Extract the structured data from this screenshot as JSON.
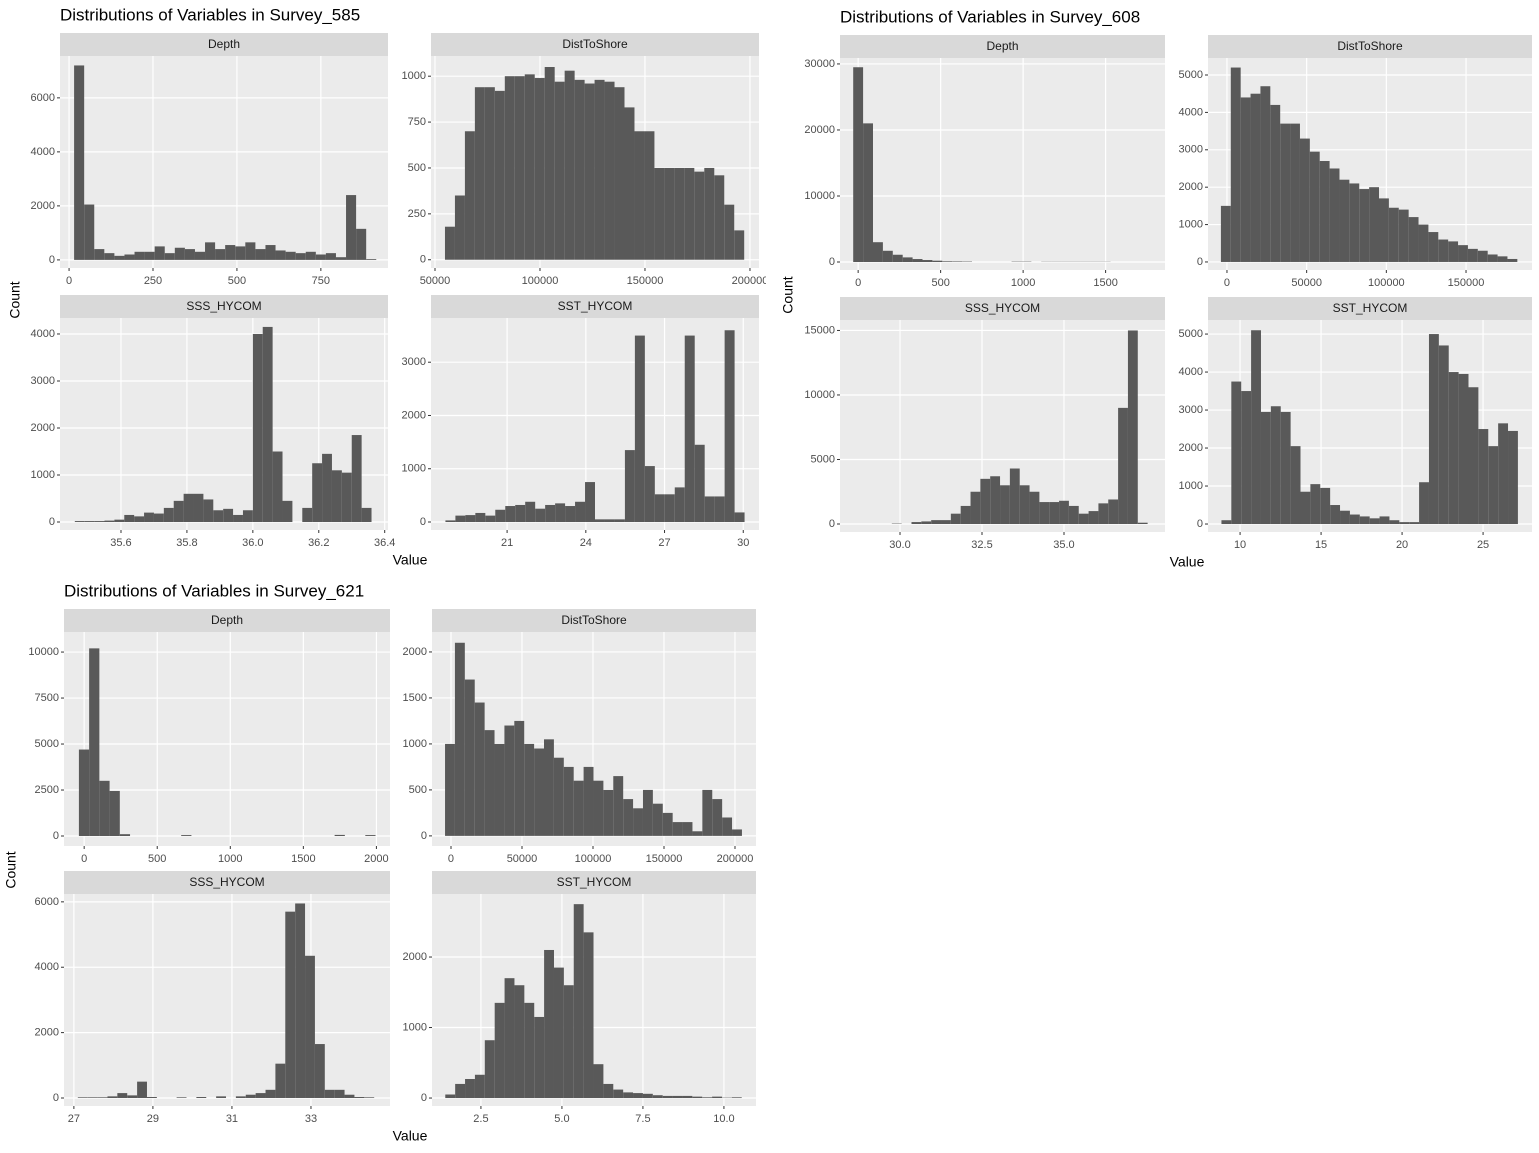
{
  "chart_data": [
    {
      "type": "histogram",
      "title": "Distributions of Variables in Survey_585",
      "xlabel": "Value",
      "ylabel": "Count",
      "color": "#595959",
      "grid": true,
      "facets": [
        {
          "name": "Depth",
          "bins": [
            15,
            45,
            75,
            105,
            135,
            165,
            195,
            225,
            255,
            285,
            315,
            345,
            375,
            405,
            435,
            465,
            495,
            525,
            555,
            585,
            615,
            645,
            675,
            705,
            735,
            765,
            795,
            825,
            855,
            885,
            915
          ],
          "counts": [
            7200,
            2050,
            400,
            250,
            150,
            200,
            300,
            300,
            500,
            250,
            450,
            400,
            300,
            650,
            400,
            550,
            500,
            650,
            400,
            550,
            350,
            300,
            250,
            300,
            200,
            250,
            100,
            2400,
            1150,
            30
          ],
          "xlim": [
            -27,
            950
          ],
          "xticks": [
            0,
            250,
            500,
            750
          ],
          "ylim": [
            -300,
            7550
          ],
          "yticks": [
            0,
            2000,
            4000,
            6000
          ]
        },
        {
          "name": "DistToShore",
          "bins": [
            54750,
            59500,
            64250,
            69000,
            73750,
            78500,
            83250,
            88000,
            92750,
            97500,
            102250,
            107000,
            111750,
            116500,
            121250,
            126000,
            130750,
            135500,
            140250,
            145000,
            149750,
            154500,
            159250,
            164000,
            168750,
            173500,
            178250,
            183000,
            187750,
            192500,
            197250
          ],
          "counts": [
            180,
            350,
            700,
            940,
            940,
            920,
            1000,
            1000,
            1010,
            990,
            1050,
            970,
            1030,
            980,
            960,
            980,
            970,
            940,
            830,
            700,
            700,
            500,
            500,
            500,
            500,
            480,
            500,
            460,
            300,
            160
          ],
          "xlim": [
            48100,
            204300
          ],
          "xticks": [
            50000,
            100000,
            150000,
            200000
          ],
          "ylim": [
            -45,
            1110
          ],
          "yticks": [
            0,
            250,
            500,
            750,
            1000
          ]
        },
        {
          "name": "SSS_HYCOM",
          "bins": [
            35.46,
            35.49,
            35.52,
            35.55,
            35.58,
            35.61,
            35.64,
            35.67,
            35.7,
            35.73,
            35.76,
            35.79,
            35.82,
            35.85,
            35.88,
            35.91,
            35.94,
            35.97,
            36,
            36.03,
            36.06,
            36.09,
            36.12,
            36.15,
            36.18,
            36.21,
            36.24,
            36.27,
            36.3,
            36.33,
            36.36
          ],
          "counts": [
            20,
            20,
            20,
            30,
            50,
            150,
            120,
            200,
            180,
            300,
            450,
            600,
            600,
            480,
            250,
            280,
            150,
            250,
            4000,
            4150,
            1500,
            450,
            0,
            300,
            1250,
            1450,
            1100,
            1050,
            1850,
            300
          ],
          "xlim": [
            35.415,
            36.41
          ],
          "xticks": [
            35.6,
            35.8,
            {
              "value": 36,
              "label": "36.0"
            },
            36.2,
            36.4
          ],
          "ylim": [
            -170,
            4340
          ],
          "yticks": [
            0,
            1000,
            2000,
            3000,
            4000
          ]
        },
        {
          "name": "SST_HYCOM",
          "bins": [
            18.65,
            19.03,
            19.41,
            19.79,
            20.17,
            20.55,
            20.93,
            21.31,
            21.69,
            22.07,
            22.45,
            22.83,
            23.21,
            23.59,
            23.97,
            24.35,
            24.73,
            25.11,
            25.49,
            25.87,
            26.25,
            26.63,
            27.01,
            27.39,
            27.77,
            28.15,
            28.53,
            28.91,
            29.29,
            29.67,
            30.05
          ],
          "counts": [
            30,
            120,
            130,
            170,
            120,
            230,
            300,
            320,
            380,
            250,
            320,
            350,
            300,
            380,
            750,
            50,
            50,
            50,
            1350,
            3500,
            1050,
            520,
            520,
            650,
            3500,
            1450,
            480,
            480,
            3600,
            180
          ],
          "xlim": [
            18.1,
            30.6
          ],
          "xticks": [
            21,
            24,
            27,
            30
          ],
          "ylim": [
            -150,
            3830
          ],
          "yticks": [
            0,
            1000,
            2000,
            3000
          ]
        }
      ]
    },
    {
      "type": "histogram",
      "title": "Distributions of Variables in Survey_608",
      "xlabel": "Value",
      "ylabel": "Count",
      "color": "#595959",
      "grid": true,
      "facets": [
        {
          "name": "Depth",
          "bins": [
            -30,
            30,
            90,
            150,
            210,
            270,
            330,
            390,
            450,
            510,
            570,
            630,
            690,
            750,
            810,
            870,
            930,
            990,
            1050,
            1110,
            1170,
            1230,
            1290,
            1350,
            1410,
            1470,
            1530,
            1590,
            1650,
            1710,
            1770
          ],
          "counts": [
            29500,
            21000,
            3000,
            1700,
            1100,
            700,
            450,
            300,
            200,
            100,
            80,
            60,
            0,
            0,
            0,
            0,
            50,
            50,
            0,
            30,
            30,
            30,
            30,
            30,
            30,
            30,
            0,
            0,
            0,
            0
          ],
          "xlim": [
            -110,
            1860
          ],
          "xticks": [
            0,
            500,
            1000,
            1500
          ],
          "ylim": [
            -1210,
            30900
          ],
          "yticks": [
            0,
            10000,
            20000,
            30000
          ]
        },
        {
          "name": "DistToShore",
          "bins": [
            -3800,
            2400,
            8600,
            14800,
            21000,
            27200,
            33400,
            39600,
            45800,
            52000,
            58200,
            64400,
            70600,
            76800,
            83000,
            89200,
            95400,
            101600,
            107800,
            114000,
            120200,
            126400,
            132600,
            138800,
            145000,
            151200,
            157400,
            163600,
            169800,
            176000,
            182200
          ],
          "counts": [
            1500,
            5200,
            4400,
            4500,
            4700,
            4200,
            3700,
            3700,
            3300,
            2950,
            2700,
            2500,
            2200,
            2100,
            1950,
            2000,
            1700,
            1450,
            1400,
            1200,
            1000,
            800,
            600,
            550,
            450,
            350,
            300,
            200,
            150,
            80
          ],
          "xlim": [
            -11900,
            191400
          ],
          "xticks": [
            0,
            50000,
            100000,
            150000
          ],
          "ylim": [
            -215,
            5455
          ],
          "yticks": [
            0,
            1000,
            2000,
            3000,
            4000,
            5000
          ]
        },
        {
          "name": "SSS_HYCOM",
          "bins": [
            28.55,
            28.85,
            29.15,
            29.45,
            29.75,
            30.05,
            30.35,
            30.65,
            30.95,
            31.25,
            31.55,
            31.85,
            32.15,
            32.45,
            32.75,
            33.05,
            33.35,
            33.65,
            33.95,
            34.25,
            34.55,
            34.85,
            35.15,
            35.45,
            35.75,
            36.05,
            36.35,
            36.65,
            36.95,
            37.25,
            37.55
          ],
          "counts": [
            0,
            0,
            0,
            0,
            30,
            0,
            150,
            200,
            300,
            300,
            800,
            1400,
            2500,
            3500,
            3700,
            3000,
            4300,
            3000,
            2500,
            1700,
            1700,
            1800,
            1400,
            800,
            1000,
            1600,
            1900,
            9000,
            15000,
            100
          ],
          "xlim": [
            28.17,
            38.08
          ],
          "xticks": [
            {
              "value": 30,
              "label": "30.0"
            },
            32.5,
            {
              "value": 35,
              "label": "35.0"
            }
          ],
          "ylim": [
            -620,
            15810
          ],
          "yticks": [
            0,
            5000,
            10000,
            15000
          ]
        },
        {
          "name": "SST_HYCOM",
          "bins": [
            8.85,
            9.46,
            10.07,
            10.68,
            11.29,
            11.9,
            12.51,
            13.12,
            13.73,
            14.34,
            14.95,
            15.56,
            16.17,
            16.78,
            17.39,
            18,
            18.61,
            19.22,
            19.83,
            20.44,
            21.05,
            21.66,
            22.27,
            22.88,
            23.49,
            24.1,
            24.71,
            25.32,
            25.93,
            26.54,
            27.15
          ],
          "counts": [
            100,
            3750,
            3500,
            5100,
            2950,
            3100,
            2950,
            2050,
            850,
            1050,
            950,
            500,
            350,
            250,
            200,
            150,
            200,
            100,
            50,
            50,
            1100,
            5000,
            4700,
            4000,
            3950,
            3600,
            2500,
            2050,
            2650,
            2450
          ],
          "xlim": [
            8.02,
            28.02
          ],
          "xticks": [
            10,
            15,
            20,
            25
          ],
          "ylim": [
            -210,
            5370
          ],
          "yticks": [
            0,
            1000,
            2000,
            3000,
            4000,
            5000
          ]
        }
      ]
    },
    {
      "type": "histogram",
      "title": "Distributions of Variables in Survey_621",
      "xlabel": "Value",
      "ylabel": "Count",
      "color": "#595959",
      "grid": true,
      "facets": [
        {
          "name": "Depth",
          "bins": [
            -36,
            34,
            104,
            174,
            244,
            314,
            384,
            454,
            524,
            594,
            664,
            734,
            804,
            874,
            944,
            1014,
            1084,
            1154,
            1224,
            1294,
            1364,
            1434,
            1504,
            1574,
            1644,
            1714,
            1784,
            1854,
            1924,
            1994,
            2064
          ],
          "counts": [
            4700,
            10200,
            3000,
            2450,
            100,
            0,
            0,
            0,
            0,
            0,
            50,
            0,
            0,
            0,
            0,
            0,
            0,
            0,
            0,
            0,
            0,
            0,
            0,
            0,
            0,
            60,
            0,
            0,
            50,
            0
          ],
          "xlim": [
            -138,
            2093
          ],
          "xticks": [
            0,
            500,
            1000,
            1500,
            2000
          ],
          "ylim": [
            -543,
            11090
          ],
          "yticks": [
            0,
            2500,
            5000,
            7500,
            10000
          ]
        },
        {
          "name": "DistToShore",
          "bins": [
            -4200,
            2770,
            9740,
            16710,
            23680,
            30650,
            37620,
            44590,
            51560,
            58530,
            65500,
            72470,
            79440,
            86410,
            93380,
            100350,
            107320,
            114290,
            121260,
            128230,
            135200,
            142170,
            149140,
            156110,
            163080,
            170050,
            177020,
            183990,
            190960,
            197930,
            204900
          ],
          "counts": [
            1000,
            2100,
            1700,
            1450,
            1150,
            1000,
            1200,
            1250,
            1000,
            950,
            1050,
            850,
            750,
            600,
            750,
            600,
            500,
            650,
            400,
            300,
            500,
            350,
            250,
            150,
            150,
            50,
            500,
            400,
            200,
            70
          ],
          "xlim": [
            -13380,
            214800
          ],
          "xticks": [
            0,
            50000,
            100000,
            150000,
            200000
          ],
          "ylim": [
            -110,
            2217
          ],
          "yticks": [
            0,
            500,
            1000,
            1500,
            2000
          ]
        },
        {
          "name": "SSS_HYCOM",
          "bins": [
            27.1,
            27.35,
            27.6,
            27.85,
            28.1,
            28.35,
            28.6,
            28.85,
            29.1,
            29.35,
            29.6,
            29.85,
            30.1,
            30.35,
            30.6,
            30.85,
            31.1,
            31.35,
            31.6,
            31.85,
            32.1,
            32.35,
            32.6,
            32.85,
            33.1,
            33.35,
            33.6,
            33.85,
            34.1,
            34.35,
            34.6
          ],
          "counts": [
            20,
            20,
            20,
            50,
            150,
            80,
            500,
            30,
            0,
            0,
            20,
            0,
            30,
            0,
            50,
            0,
            50,
            100,
            150,
            250,
            1050,
            5700,
            5950,
            4350,
            1650,
            250,
            250,
            100,
            30,
            20
          ],
          "xlim": [
            26.75,
            35.0
          ],
          "xticks": [
            27,
            29,
            31,
            33
          ],
          "ylim": [
            -245,
            6240
          ],
          "yticks": [
            0,
            2000,
            4000,
            6000
          ]
        },
        {
          "name": "SST_HYCOM",
          "bins": [
            1.4,
            1.705,
            2.01,
            2.315,
            2.62,
            2.925,
            3.23,
            3.535,
            3.84,
            4.145,
            4.45,
            4.755,
            5.06,
            5.365,
            5.67,
            5.975,
            6.28,
            6.585,
            6.89,
            7.195,
            7.5,
            7.805,
            8.11,
            8.415,
            8.72,
            9.025,
            9.33,
            9.635,
            9.94,
            10.245,
            10.55
          ],
          "counts": [
            50,
            200,
            270,
            330,
            820,
            1350,
            1700,
            1600,
            1350,
            1150,
            2100,
            1850,
            1600,
            2750,
            2350,
            480,
            200,
            120,
            80,
            70,
            60,
            40,
            30,
            30,
            30,
            20,
            10,
            20,
            5,
            10
          ],
          "xlim": [
            0.99,
            10.99
          ],
          "xticks": [
            2.5,
            {
              "value": 5,
              "label": "5.0"
            },
            7.5,
            {
              "value": 10,
              "label": "10.0"
            }
          ],
          "ylim": [
            -113,
            2894
          ],
          "yticks": [
            0,
            1000,
            2000
          ]
        }
      ]
    }
  ]
}
